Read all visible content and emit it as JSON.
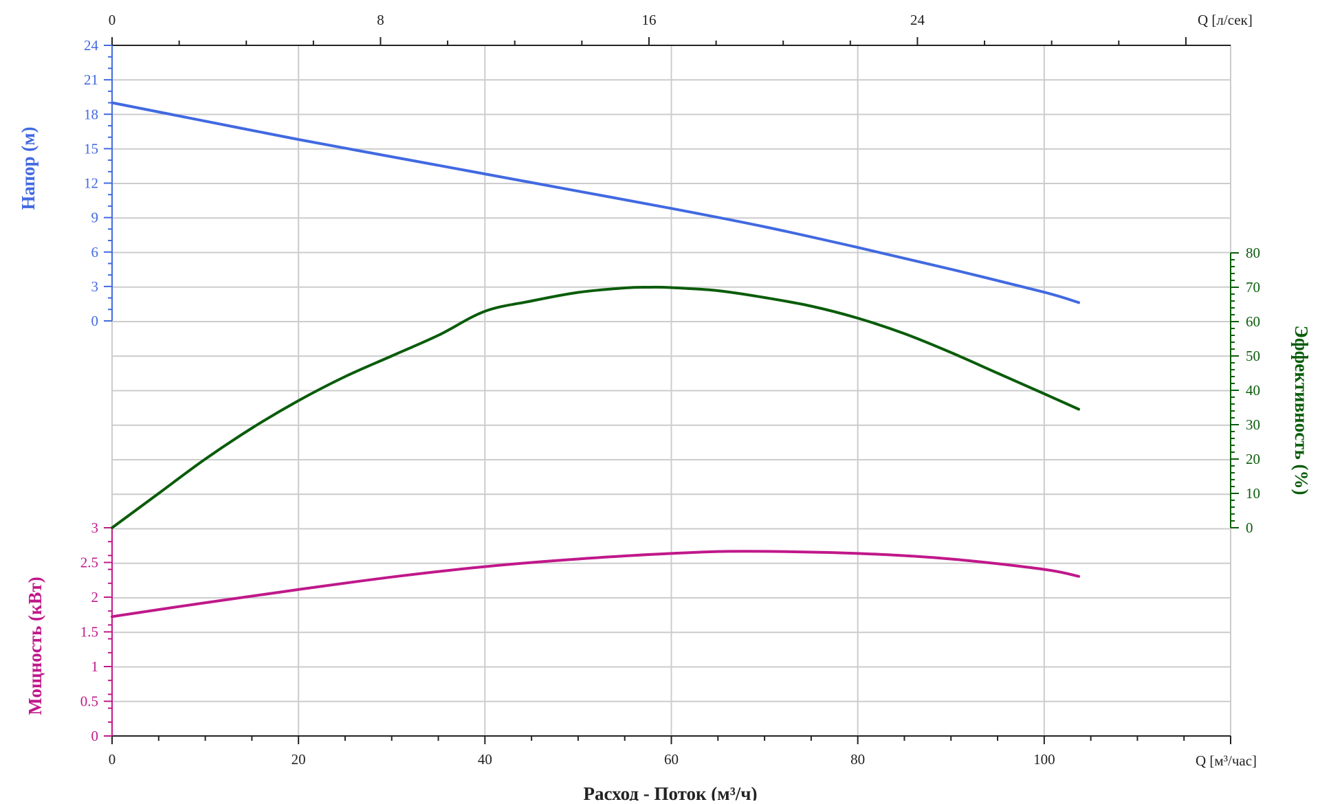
{
  "chart_data": {
    "type": "line",
    "title": "",
    "xlabel": "Расход - Поток (м³/ч)",
    "x_unit_label": "Q [м³/час]",
    "x_ticks": [
      "0",
      "20",
      "40",
      "60",
      "80",
      "100"
    ],
    "xlim": [
      0,
      120
    ],
    "x2_unit_label": "Q [л/сек]",
    "x2_ticks": [
      "0",
      "8",
      "16",
      "24"
    ],
    "x2_values": [
      0,
      8,
      16,
      24
    ],
    "x2_per_x": 3.6,
    "grid": true,
    "head": {
      "name": "",
      "ylabel": "Напор (м)",
      "ylim": [
        0,
        24
      ],
      "ticks": [
        "0",
        "3",
        "6",
        "9",
        "12",
        "15",
        "18",
        "21",
        "24"
      ],
      "color": "#4169e1",
      "x": [
        0,
        10,
        20,
        30,
        40,
        50,
        60,
        70,
        80,
        90,
        100,
        103.7
      ],
      "y": [
        19.0,
        17.4,
        15.8,
        14.3,
        12.8,
        11.3,
        9.8,
        8.2,
        6.4,
        4.5,
        2.5,
        1.6
      ]
    },
    "efficiency": {
      "name": "",
      "ylabel": "Эффективность (%)",
      "ylim": [
        0,
        80
      ],
      "ticks": [
        "0",
        "10",
        "20",
        "30",
        "40",
        "50",
        "60",
        "70",
        "80"
      ],
      "color": "#0a5c0a",
      "x": [
        0,
        5,
        10,
        15,
        20,
        25,
        30,
        35,
        40,
        45,
        50,
        55,
        57.5,
        60,
        65,
        70,
        75,
        80,
        85,
        90,
        95,
        100,
        103.7
      ],
      "y": [
        0,
        10,
        20,
        29,
        37,
        44,
        50,
        56,
        63,
        66,
        68.5,
        69.8,
        70,
        69.9,
        69,
        67,
        64.5,
        61,
        56.5,
        51,
        45,
        39,
        34.5
      ]
    },
    "power": {
      "name": "",
      "ylabel": "Мощность (кВт)",
      "ylim": [
        0,
        3
      ],
      "ticks": [
        "0",
        "0.5",
        "1",
        "1.5",
        "2",
        "2.5",
        "3"
      ],
      "color": "#c0188a",
      "x": [
        0,
        10,
        20,
        30,
        40,
        50,
        60,
        68,
        80,
        90,
        100,
        103.7
      ],
      "y": [
        1.72,
        1.92,
        2.11,
        2.29,
        2.44,
        2.55,
        2.63,
        2.66,
        2.63,
        2.55,
        2.4,
        2.3
      ]
    }
  }
}
